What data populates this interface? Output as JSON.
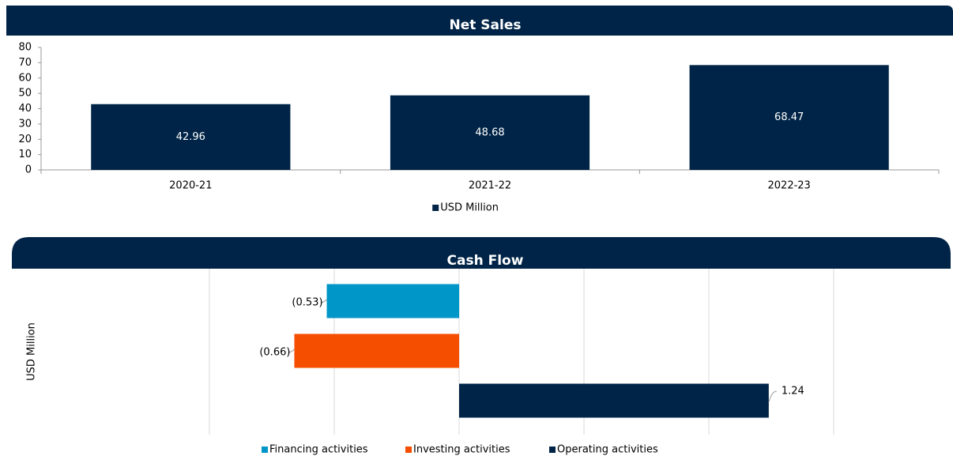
{
  "chart_data": [
    {
      "type": "bar",
      "title": "Net Sales",
      "categories": [
        "2020-21",
        "2021-22",
        "2022-23"
      ],
      "series": [
        {
          "name": "USD Million",
          "color": "#002447",
          "values": [
            42.96,
            48.68,
            68.47
          ]
        }
      ],
      "ylim": [
        0,
        80
      ],
      "yticks": [
        0,
        10,
        20,
        30,
        40,
        50,
        60,
        70,
        80
      ]
    },
    {
      "type": "hbar",
      "title": "Cash Flow",
      "y_label": "USD Million",
      "categories": [
        "Financing activities",
        "Investing activities",
        "Operating activities"
      ],
      "values": [
        -0.53,
        -0.66,
        1.24
      ],
      "value_labels": [
        "(0.53)",
        "(0.66)",
        "1.24"
      ],
      "colors": [
        "#0096c8",
        "#f54e00",
        "#002447"
      ],
      "xlim": [
        -1,
        1.5
      ],
      "xticks": [
        -1,
        -0.5,
        0,
        0.5,
        1,
        1.5
      ],
      "grid": true
    }
  ]
}
